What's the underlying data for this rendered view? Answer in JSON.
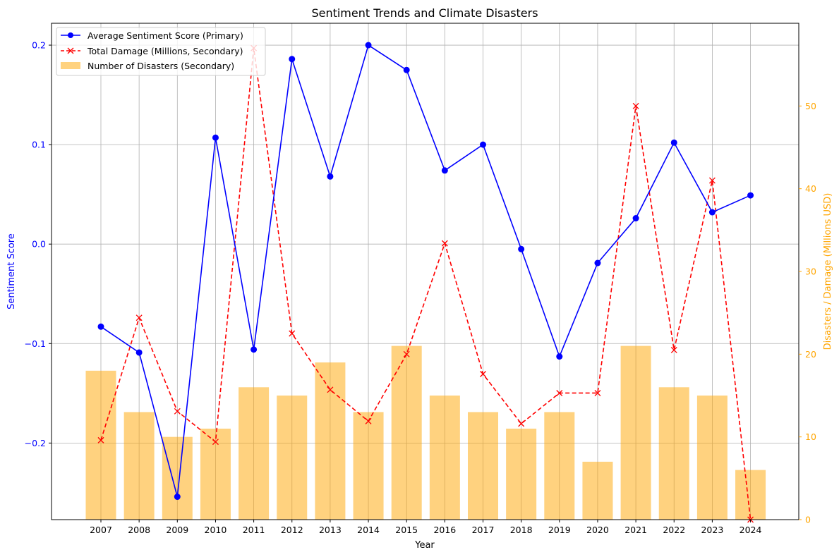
{
  "chart_data": {
    "type": "bar",
    "title": "Sentiment Trends and Climate Disasters",
    "xlabel": "Year",
    "ylabel": "Sentiment Score",
    "ylabel_secondary": "Disasters / Damage (Millions USD)",
    "categories": [
      "2007",
      "2008",
      "2009",
      "2010",
      "2011",
      "2012",
      "2013",
      "2014",
      "2015",
      "2016",
      "2017",
      "2018",
      "2019",
      "2020",
      "2021",
      "2022",
      "2023",
      "2024"
    ],
    "ylim": [
      -0.277,
      0.222
    ],
    "ylim_secondary": [
      0,
      60
    ],
    "yticks": [
      "−0.2",
      "−0.1",
      "0.0",
      "0.1",
      "0.2"
    ],
    "yticks_values": [
      -0.2,
      -0.1,
      0.0,
      0.1,
      0.2
    ],
    "yticks_secondary": [
      "0",
      "10",
      "20",
      "30",
      "40",
      "50"
    ],
    "yticks_secondary_values": [
      0,
      10,
      20,
      30,
      40,
      50
    ],
    "grid": true,
    "legend_placement": "top-left",
    "colors": {
      "sentiment": "#0000ff",
      "damage": "#ff0000",
      "disasters": "#ffa500",
      "secondary_axis": "#ffa500",
      "primary_axis": "#0000ff"
    },
    "series": [
      {
        "name": "Average Sentiment Score (Primary)",
        "axis": "primary",
        "kind": "line",
        "values": [
          -0.083,
          -0.109,
          -0.254,
          0.107,
          -0.106,
          0.186,
          0.068,
          0.2,
          0.175,
          0.074,
          0.1,
          -0.005,
          -0.113,
          -0.019,
          0.026,
          0.102,
          0.032,
          0.049
        ]
      },
      {
        "name": "Total Damage (Millions, Secondary)",
        "axis": "secondary",
        "kind": "dashed-line",
        "values": [
          9.6,
          24.4,
          13.1,
          9.4,
          57.0,
          22.5,
          15.7,
          11.9,
          20.0,
          33.4,
          17.6,
          11.6,
          15.3,
          15.3,
          50.0,
          20.5,
          41.0,
          0.0
        ]
      },
      {
        "name": "Number of Disasters (Secondary)",
        "axis": "secondary",
        "kind": "bar",
        "values": [
          18,
          13,
          10,
          11,
          16,
          15,
          19,
          13,
          21,
          15,
          13,
          11,
          13,
          7,
          21,
          16,
          15,
          6
        ]
      }
    ]
  }
}
